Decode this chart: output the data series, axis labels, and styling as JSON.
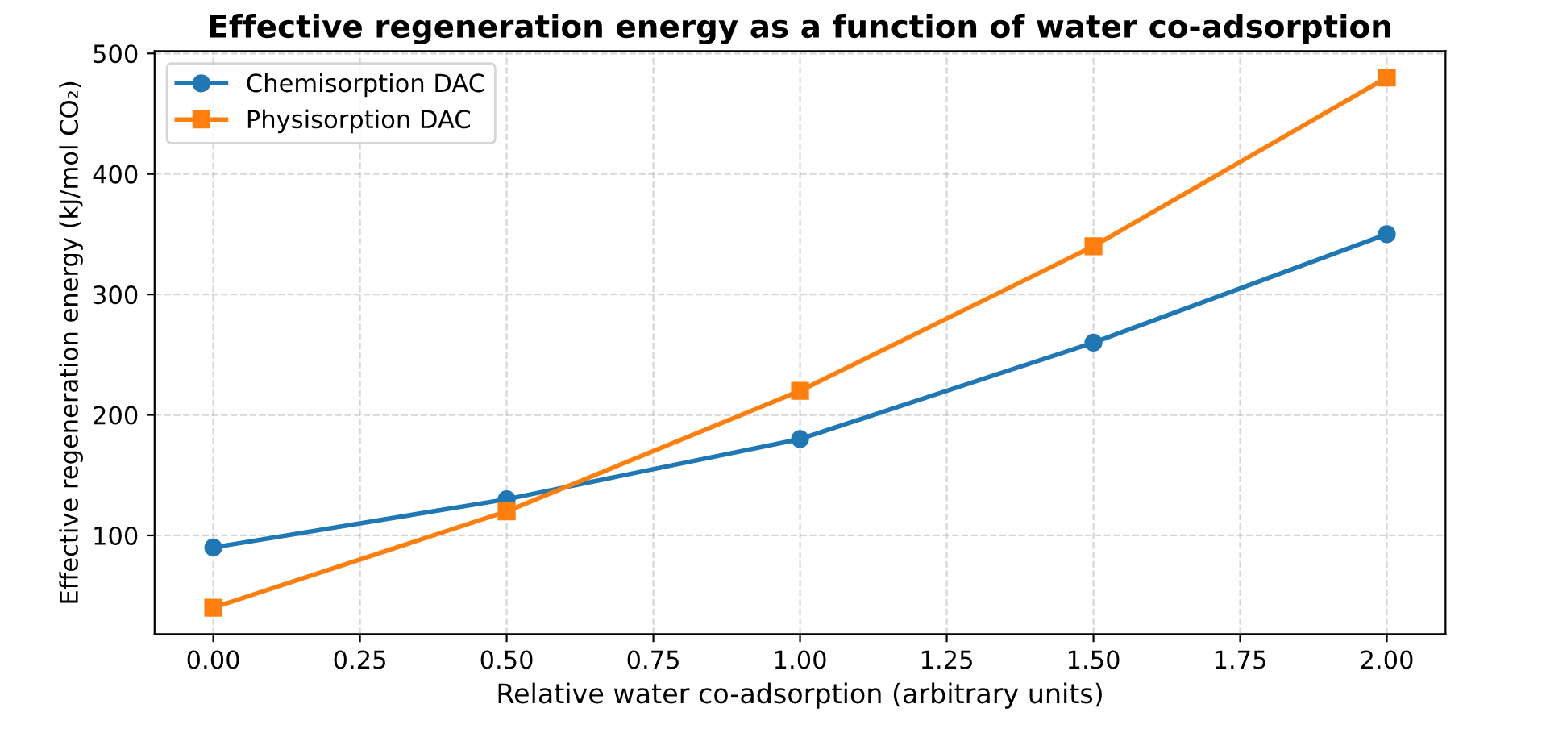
{
  "chart_data": {
    "type": "line",
    "title": "Effective regeneration energy as a function of water co-adsorption",
    "xlabel": "Relative water co-adsorption (arbitrary units)",
    "ylabel": "Effective regeneration energy (kJ/mol CO₂)",
    "x": [
      0.0,
      0.5,
      1.0,
      1.5,
      2.0
    ],
    "series": [
      {
        "name": "Chemisorption DAC",
        "color": "#1f77b4",
        "values": [
          90,
          130,
          180,
          260,
          350
        ],
        "marker": "circle"
      },
      {
        "name": "Physisorption DAC",
        "color": "#ff7f0e",
        "values": [
          40,
          120,
          220,
          340,
          480
        ],
        "marker": "square"
      }
    ],
    "xlim": [
      -0.1,
      2.1
    ],
    "xticks": [
      {
        "value": 0,
        "label": "0.00"
      },
      {
        "value": 0.25,
        "label": "0.25"
      },
      {
        "value": 0.5,
        "label": "0.50"
      },
      {
        "value": 0.75,
        "label": "0.75"
      },
      {
        "value": 1,
        "label": "1.00"
      },
      {
        "value": 1.25,
        "label": "1.25"
      },
      {
        "value": 1.5,
        "label": "1.50"
      },
      {
        "value": 1.75,
        "label": "1.75"
      },
      {
        "value": 2,
        "label": "2.00"
      }
    ],
    "ylim": [
      18,
      502
    ],
    "yticks": [
      100,
      200,
      300,
      400,
      500
    ],
    "grid": true,
    "legend": "top left",
    "line_style": "solid"
  }
}
